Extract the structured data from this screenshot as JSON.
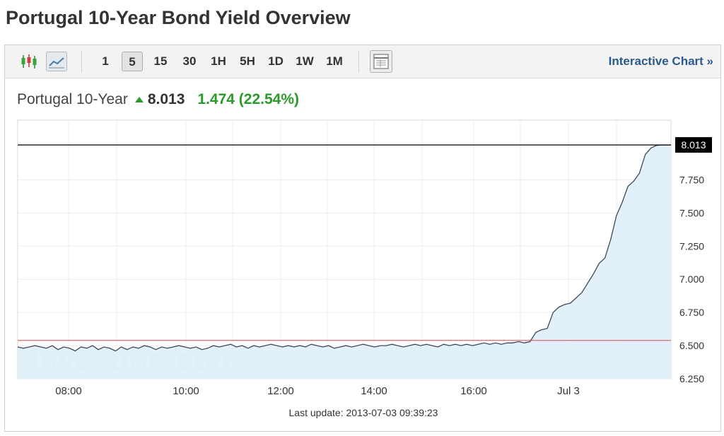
{
  "page": {
    "title": "Portugal 10-Year Bond Yield Overview"
  },
  "toolbar": {
    "intervals": [
      "1",
      "5",
      "15",
      "30",
      "1H",
      "5H",
      "1D",
      "1W",
      "1M"
    ],
    "active_interval": "5",
    "interactive_chart_label": "Interactive Chart »",
    "icons": [
      "candlestick-icon",
      "line-chart-icon",
      "table-view-icon"
    ]
  },
  "quote": {
    "name": "Portugal 10-Year",
    "last": "8.013",
    "change": "1.474 (22.54%)",
    "direction": "up"
  },
  "colors": {
    "up": "#2a9a2a",
    "link": "#2a5b8d",
    "area_fill": "#e0effa",
    "line": "#3c4a5a",
    "reference_line": "#d04a4a"
  },
  "chart_data": {
    "type": "area",
    "x_ticks": [
      "08:00",
      "10:00",
      "12:00",
      "14:00",
      "16:00",
      "Jul 3"
    ],
    "y_ticks": [
      "6.250",
      "6.500",
      "6.750",
      "7.000",
      "7.250",
      "7.500",
      "7.750"
    ],
    "ylim": [
      6.25,
      8.2
    ],
    "current_value_label": "8.013",
    "current_value": 8.013,
    "reference_value": 6.539,
    "grid": true,
    "watermark": "Investing.com",
    "series": [
      {
        "values": [
          6.49,
          6.48,
          6.49,
          6.5,
          6.49,
          6.48,
          6.5,
          6.47,
          6.49,
          6.48,
          6.46,
          6.49,
          6.48,
          6.5,
          6.47,
          6.49,
          6.48,
          6.46,
          6.49,
          6.47,
          6.49,
          6.48,
          6.5,
          6.49,
          6.47,
          6.49,
          6.48,
          6.49,
          6.5,
          6.49,
          6.48,
          6.49,
          6.47,
          6.48,
          6.5,
          6.49,
          6.5,
          6.51,
          6.49,
          6.5,
          6.48,
          6.5,
          6.49,
          6.5,
          6.51,
          6.5,
          6.49,
          6.5,
          6.49,
          6.5,
          6.49,
          6.51,
          6.5,
          6.49,
          6.5,
          6.48,
          6.49,
          6.5,
          6.49,
          6.5,
          6.51,
          6.5,
          6.49,
          6.5,
          6.5,
          6.51,
          6.5,
          6.49,
          6.5,
          6.51,
          6.5,
          6.51,
          6.5,
          6.49,
          6.51,
          6.5,
          6.51,
          6.5,
          6.51,
          6.5,
          6.51,
          6.52,
          6.51,
          6.52,
          6.51,
          6.52,
          6.52,
          6.53,
          6.52,
          6.53,
          6.6,
          6.62,
          6.63,
          6.75,
          6.79,
          6.81,
          6.82,
          6.86,
          6.9,
          6.97,
          7.04,
          7.12,
          7.16,
          7.3,
          7.48,
          7.58,
          7.7,
          7.74,
          7.8,
          7.94,
          7.99,
          8.01,
          8.013
        ]
      }
    ]
  },
  "footer": {
    "last_update": "Last update: 2013-07-03 09:39:23"
  }
}
